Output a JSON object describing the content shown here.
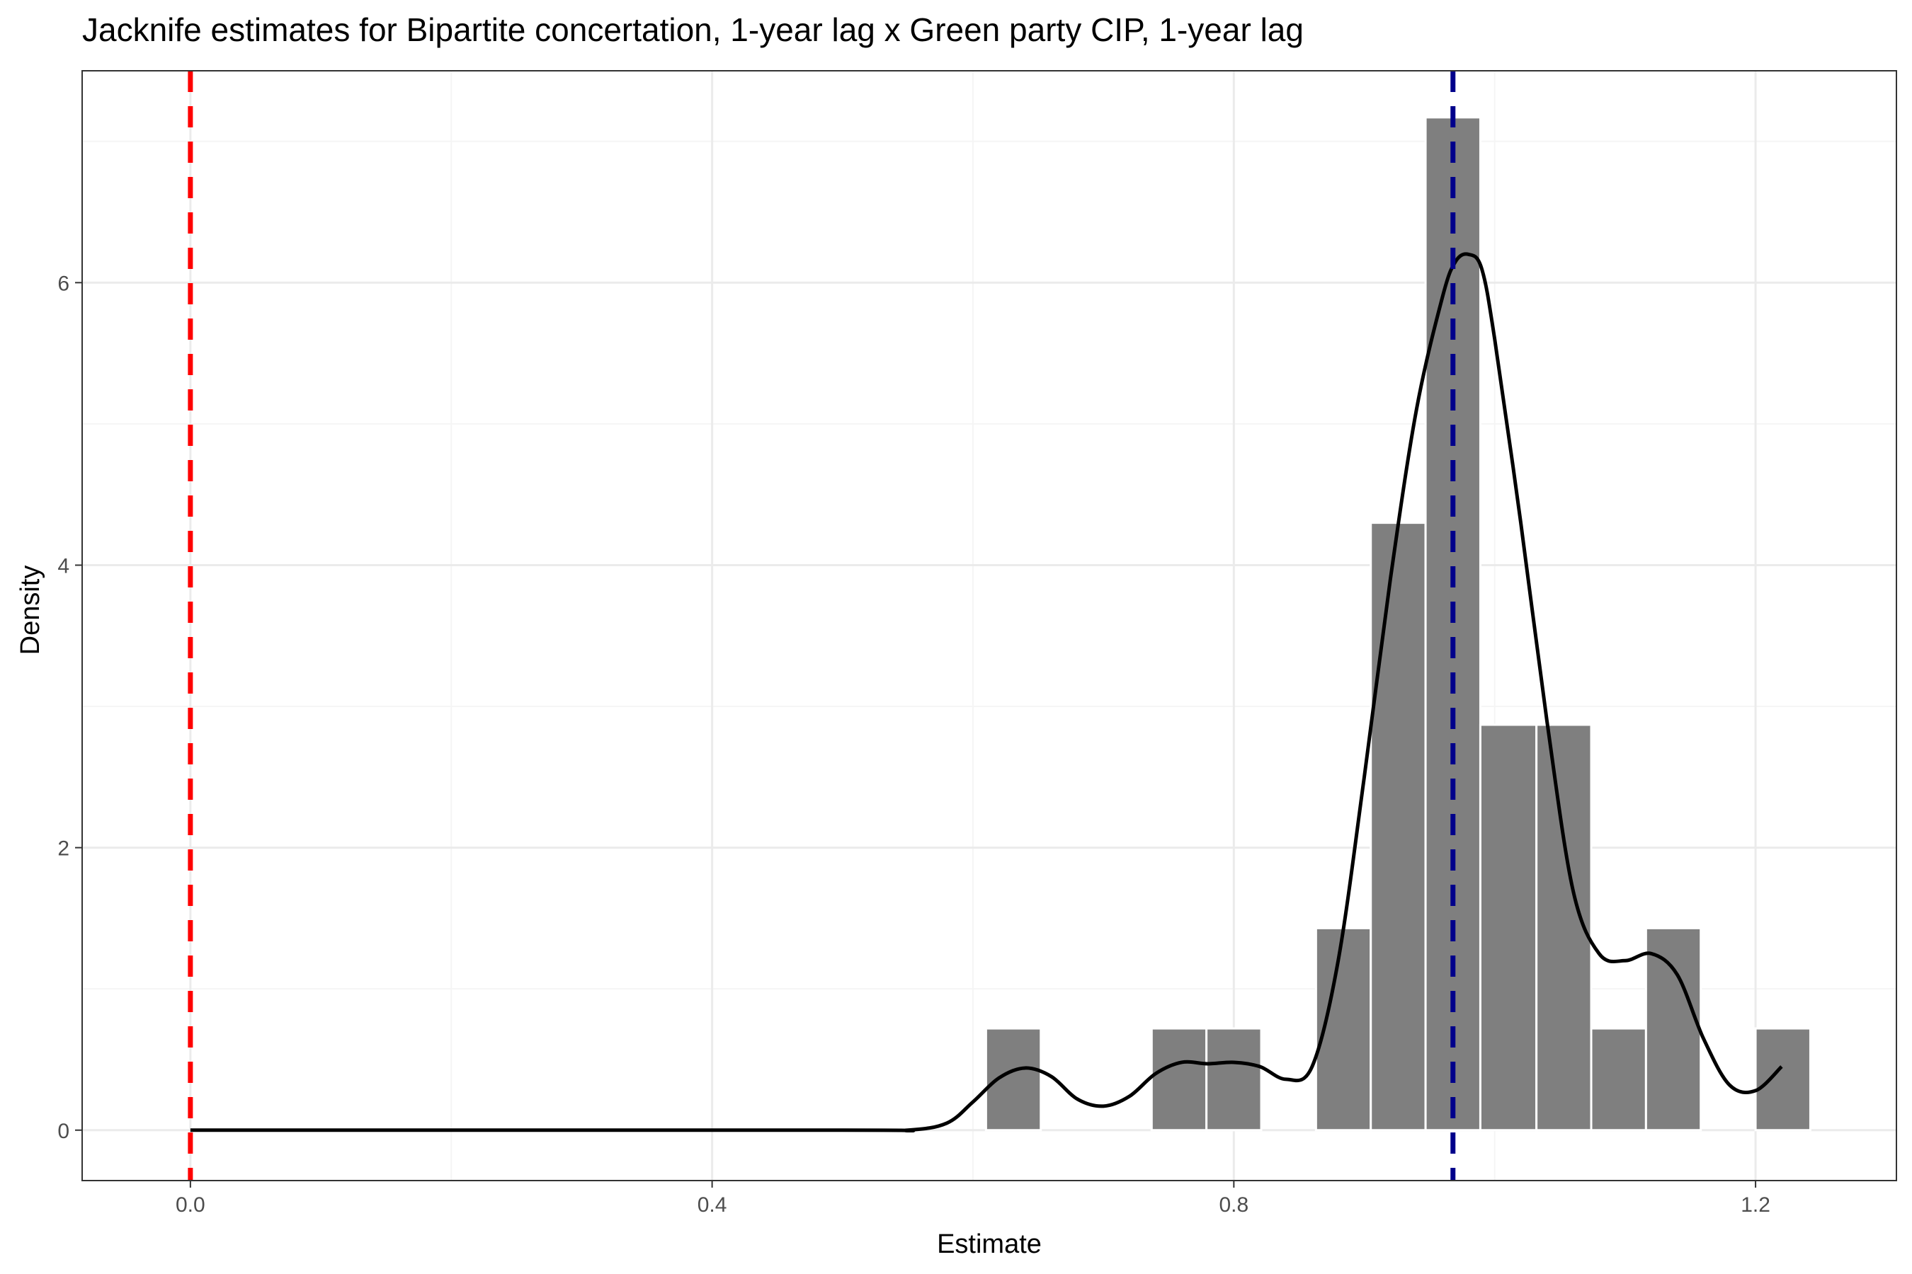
{
  "chart_data": {
    "type": "histogram",
    "title": "Jacknife estimates for Bipartite concertation, 1-year lag x Green party CIP, 1-year lag",
    "xlabel": "Estimate",
    "ylabel": "Density",
    "xlim": [
      -0.083,
      1.308
    ],
    "ylim": [
      -0.357,
      7.5
    ],
    "x_ticks": [
      0.0,
      0.4,
      0.8,
      1.2
    ],
    "x_tick_labels": [
      "0.0",
      "0.4",
      "0.8",
      "1.2"
    ],
    "y_ticks": [
      0,
      2,
      4,
      6
    ],
    "y_tick_labels": [
      "0",
      "2",
      "4",
      "6"
    ],
    "grid": true,
    "bin_width": 0.042,
    "bars": [
      {
        "x0": 0.61,
        "x1": 0.652,
        "density": 0.72
      },
      {
        "x0": 0.737,
        "x1": 0.779,
        "density": 0.72
      },
      {
        "x0": 0.779,
        "x1": 0.821,
        "density": 0.72
      },
      {
        "x0": 0.863,
        "x1": 0.905,
        "density": 1.43
      },
      {
        "x0": 0.905,
        "x1": 0.947,
        "density": 4.3
      },
      {
        "x0": 0.947,
        "x1": 0.989,
        "density": 7.17
      },
      {
        "x0": 0.989,
        "x1": 1.032,
        "density": 2.87
      },
      {
        "x0": 1.032,
        "x1": 1.074,
        "density": 2.87
      },
      {
        "x0": 1.074,
        "x1": 1.116,
        "density": 0.72
      },
      {
        "x0": 1.116,
        "x1": 1.158,
        "density": 1.43
      },
      {
        "x0": 1.2,
        "x1": 1.242,
        "density": 0.72
      }
    ],
    "density_curve": [
      [
        0.0,
        0.0
      ],
      [
        0.5,
        0.0
      ],
      [
        0.55,
        0.0
      ],
      [
        0.58,
        0.05
      ],
      [
        0.6,
        0.2
      ],
      [
        0.62,
        0.37
      ],
      [
        0.64,
        0.44
      ],
      [
        0.66,
        0.38
      ],
      [
        0.68,
        0.22
      ],
      [
        0.7,
        0.17
      ],
      [
        0.72,
        0.24
      ],
      [
        0.74,
        0.4
      ],
      [
        0.76,
        0.48
      ],
      [
        0.78,
        0.47
      ],
      [
        0.8,
        0.48
      ],
      [
        0.82,
        0.45
      ],
      [
        0.84,
        0.36
      ],
      [
        0.86,
        0.45
      ],
      [
        0.88,
        1.2
      ],
      [
        0.9,
        2.5
      ],
      [
        0.92,
        3.9
      ],
      [
        0.94,
        5.1
      ],
      [
        0.96,
        5.9
      ],
      [
        0.97,
        6.15
      ],
      [
        0.98,
        6.2
      ],
      [
        0.99,
        6.1
      ],
      [
        1.0,
        5.6
      ],
      [
        1.02,
        4.3
      ],
      [
        1.04,
        2.9
      ],
      [
        1.06,
        1.7
      ],
      [
        1.08,
        1.25
      ],
      [
        1.1,
        1.2
      ],
      [
        1.12,
        1.25
      ],
      [
        1.14,
        1.1
      ],
      [
        1.16,
        0.65
      ],
      [
        1.18,
        0.32
      ],
      [
        1.2,
        0.28
      ],
      [
        1.22,
        0.45
      ]
    ],
    "reference_lines": [
      {
        "x": 0.0,
        "color": "#ff0000",
        "style": "dashed"
      },
      {
        "x": 0.968,
        "color": "#00008b",
        "style": "dashed"
      }
    ],
    "colors": {
      "bar_fill": "#7f7f7f",
      "bar_stroke": "#ffffff",
      "curve": "#000000",
      "grid_major": "#ebebeb",
      "grid_minor": "#f5f5f5",
      "panel_border": "#333333"
    }
  }
}
